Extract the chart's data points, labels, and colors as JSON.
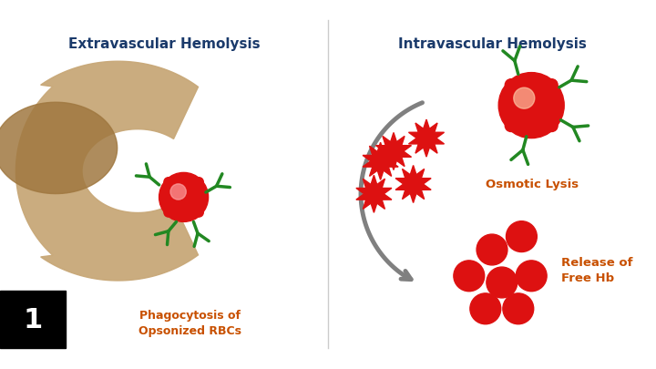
{
  "title_left": "Extravascular Hemolysis",
  "title_right": "Intravascular Hemolysis",
  "label_left": "Phagocytosis of\nOpsonized RBCs",
  "label_osmotic": "Osmotic Lysis",
  "label_free_hb": "Release of\nFree Hb",
  "title_color": "#1a3a6b",
  "label_color": "#c85000",
  "rbc_red": "#dd1111",
  "rbc_highlight": "#ffaaaa",
  "antibody_green": "#228822",
  "macrophage_tan": "#c8a878",
  "macrophage_dark": "#a07840",
  "arrow_gray": "#808080",
  "number_box_color": "#000000",
  "number_text_color": "#ffffff",
  "divider_color": "#cccccc",
  "bg_color": "#ffffff"
}
